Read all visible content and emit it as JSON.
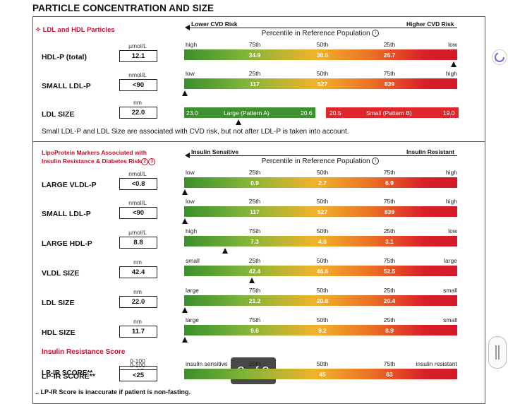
{
  "title": "PARTICLE CONCENTRATION AND SIZE",
  "sec1": {
    "heading": "LDL and HDL Particles",
    "bullet": "✧",
    "left_arrow": "Lower CVD Risk",
    "right_arrow": "Higher CVD Risk",
    "percentile_title": "Percentile in Reference Population",
    "info_glyph": "i",
    "rows": [
      {
        "label": "HDL-P (total)",
        "unit": "µmol/L",
        "value": "12.1",
        "ticks": [
          "high",
          "75th",
          "50th",
          "25th",
          "low"
        ],
        "bar_values": [
          "34.9",
          "30.5",
          "26.7"
        ],
        "marker": 1.0
      },
      {
        "label": "SMALL LDL-P",
        "unit": "nmol/L",
        "value": "<90",
        "ticks": [
          "low",
          "25th",
          "50th",
          "75th",
          "high"
        ],
        "bar_values": [
          "117",
          "527",
          "839"
        ],
        "marker": 0.0
      }
    ],
    "ldl_size": {
      "label": "LDL SIZE",
      "unit": "nm",
      "value": "22.0",
      "green_start": "23.0",
      "green_label": "Large (Pattern A)",
      "green_end": "20.6",
      "red_start": "20.5",
      "red_label": "Small (Pattern B)",
      "red_end": "19.0",
      "marker": 0.35
    },
    "note": "Small LDL-P and LDL Size are associated with CVD risk, but not after LDL-P is taken into account."
  },
  "sec2": {
    "heading1": "LipoProtein Markers Associated with",
    "heading2": "Insulin Resistance & Diabetes Risk",
    "info_glyphs": [
      "2",
      "3"
    ],
    "left_arrow": "Insulin Sensitive",
    "right_arrow": "Insulin Resistant",
    "percentile_title": "Percentile in Reference Population",
    "rows": [
      {
        "label": "LARGE VLDL-P",
        "unit": "nmol/L",
        "value": "<0.8",
        "ticks": [
          "low",
          "25th",
          "50th",
          "75th",
          "high"
        ],
        "bar_values": [
          "0.9",
          "2.7",
          "6.9"
        ],
        "marker": 0.0
      },
      {
        "label": "SMALL LDL-P",
        "unit": "nmol/L",
        "value": "<90",
        "ticks": [
          "low",
          "25th",
          "50th",
          "75th",
          "high"
        ],
        "bar_values": [
          "117",
          "527",
          "839"
        ],
        "marker": 0.0
      },
      {
        "label": "LARGE HDL-P",
        "unit": "µmol/L",
        "value": "8.8",
        "ticks": [
          "high",
          "75th",
          "50th",
          "25th",
          "low"
        ],
        "bar_values": [
          "7.3",
          "4.8",
          "3.1"
        ],
        "marker": 0.15
      },
      {
        "label": "VLDL SIZE",
        "unit": "nm",
        "value": "42.4",
        "ticks": [
          "small",
          "25th",
          "50th",
          "75th",
          "large"
        ],
        "bar_values": [
          "42.4",
          "46.6",
          "52.5"
        ],
        "marker": 0.25
      },
      {
        "label": "LDL SIZE",
        "unit": "nm",
        "value": "22.0",
        "ticks": [
          "large",
          "75th",
          "50th",
          "25th",
          "small"
        ],
        "bar_values": [
          "21.2",
          "20.8",
          "20.4"
        ],
        "marker": 0.0
      },
      {
        "label": "HDL SIZE",
        "unit": "nm",
        "value": "11.7",
        "ticks": [
          "large",
          "75th",
          "50th",
          "25th",
          "small"
        ],
        "bar_values": [
          "9.6",
          "9.2",
          "8.9"
        ],
        "marker": 0.0
      }
    ],
    "ir_heading": "Insulin Resistance Score",
    "lpir": {
      "label": "LP-IR SCORE**",
      "unit": "0-100",
      "value": "<25",
      "ticks": [
        "insulin sensitive",
        "25th",
        "50th",
        "75th",
        "insulin resistant"
      ],
      "bar_values": [
        "",
        "45",
        "63"
      ]
    },
    "footnote": "LP-IR Score is inaccurate if patient is non-fasting."
  },
  "page_badge": "3 of 3"
}
